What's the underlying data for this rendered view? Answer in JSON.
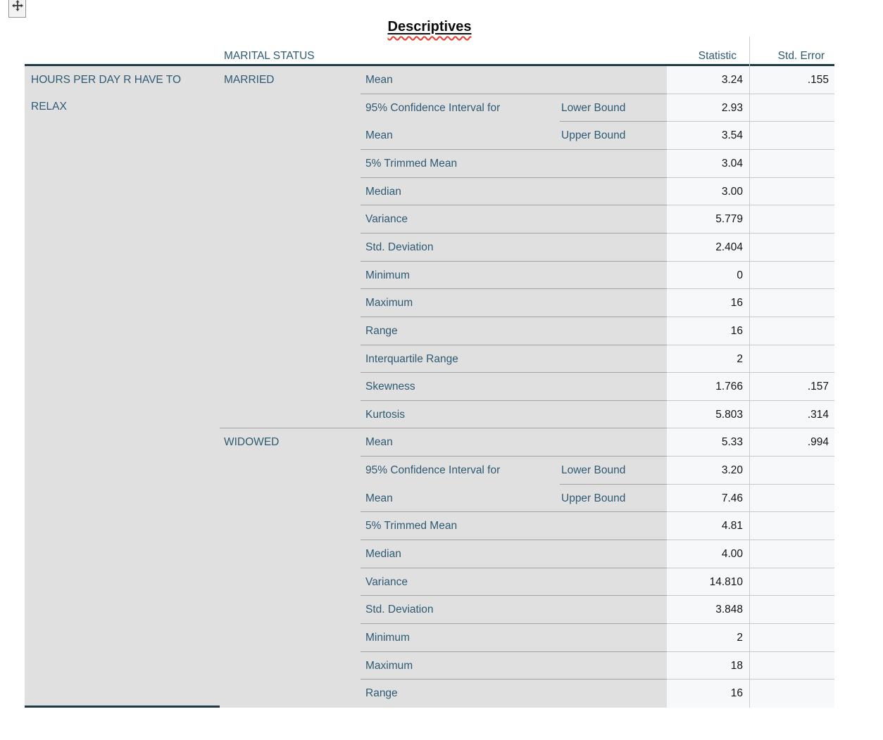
{
  "view": {
    "title": "Descriptives",
    "move_icon": "move-handle-icon"
  },
  "table": {
    "headers": {
      "marital_status": "MARITAL STATUS",
      "statistic": "Statistic",
      "std_error": "Std. Error"
    },
    "dependent_label": "HOURS PER DAY R HAVE TO RELAX",
    "groups": [
      {
        "name": "MARRIED",
        "rows": [
          {
            "label": "Mean",
            "sublabel": "",
            "statistic": "3.24",
            "std_error": ".155",
            "sep": "full"
          },
          {
            "label": "95% Confidence Interval for",
            "sublabel": "Lower Bound",
            "statistic": "2.93",
            "std_error": "",
            "sep": "sub"
          },
          {
            "label": "Mean",
            "sublabel": "Upper Bound",
            "statistic": "3.54",
            "std_error": "",
            "sep": "full"
          },
          {
            "label": "5% Trimmed Mean",
            "sublabel": "",
            "statistic": "3.04",
            "std_error": "",
            "sep": "full"
          },
          {
            "label": "Median",
            "sublabel": "",
            "statistic": "3.00",
            "std_error": "",
            "sep": "full"
          },
          {
            "label": "Variance",
            "sublabel": "",
            "statistic": "5.779",
            "std_error": "",
            "sep": "full"
          },
          {
            "label": "Std. Deviation",
            "sublabel": "",
            "statistic": "2.404",
            "std_error": "",
            "sep": "full"
          },
          {
            "label": "Minimum",
            "sublabel": "",
            "statistic": "0",
            "std_error": "",
            "sep": "full"
          },
          {
            "label": "Maximum",
            "sublabel": "",
            "statistic": "16",
            "std_error": "",
            "sep": "full"
          },
          {
            "label": "Range",
            "sublabel": "",
            "statistic": "16",
            "std_error": "",
            "sep": "full"
          },
          {
            "label": "Interquartile Range",
            "sublabel": "",
            "statistic": "2",
            "std_error": "",
            "sep": "full"
          },
          {
            "label": "Skewness",
            "sublabel": "",
            "statistic": "1.766",
            "std_error": ".157",
            "sep": "full"
          },
          {
            "label": "Kurtosis",
            "sublabel": "",
            "statistic": "5.803",
            "std_error": ".314",
            "sep": "group"
          }
        ]
      },
      {
        "name": "WIDOWED",
        "rows": [
          {
            "label": "Mean",
            "sublabel": "",
            "statistic": "5.33",
            "std_error": ".994",
            "sep": "full"
          },
          {
            "label": "95% Confidence Interval for",
            "sublabel": "Lower Bound",
            "statistic": "3.20",
            "std_error": "",
            "sep": "sub"
          },
          {
            "label": "Mean",
            "sublabel": "Upper Bound",
            "statistic": "7.46",
            "std_error": "",
            "sep": "full"
          },
          {
            "label": "5% Trimmed Mean",
            "sublabel": "",
            "statistic": "4.81",
            "std_error": "",
            "sep": "full"
          },
          {
            "label": "Median",
            "sublabel": "",
            "statistic": "4.00",
            "std_error": "",
            "sep": "full"
          },
          {
            "label": "Variance",
            "sublabel": "",
            "statistic": "14.810",
            "std_error": "",
            "sep": "full"
          },
          {
            "label": "Std. Deviation",
            "sublabel": "",
            "statistic": "3.848",
            "std_error": "",
            "sep": "full"
          },
          {
            "label": "Minimum",
            "sublabel": "",
            "statistic": "2",
            "std_error": "",
            "sep": "full"
          },
          {
            "label": "Maximum",
            "sublabel": "",
            "statistic": "18",
            "std_error": "",
            "sep": "full"
          },
          {
            "label": "Range",
            "sublabel": "",
            "statistic": "16",
            "std_error": "",
            "sep": "none"
          }
        ]
      }
    ],
    "colors": {
      "label_text": "#2e5a73",
      "value_text": "#131313",
      "label_bg": "#e0e0e0",
      "value_bg": "#f7f8fa",
      "dark_border": "#1e3947",
      "spellcheck_red": "#e63b2e"
    }
  }
}
